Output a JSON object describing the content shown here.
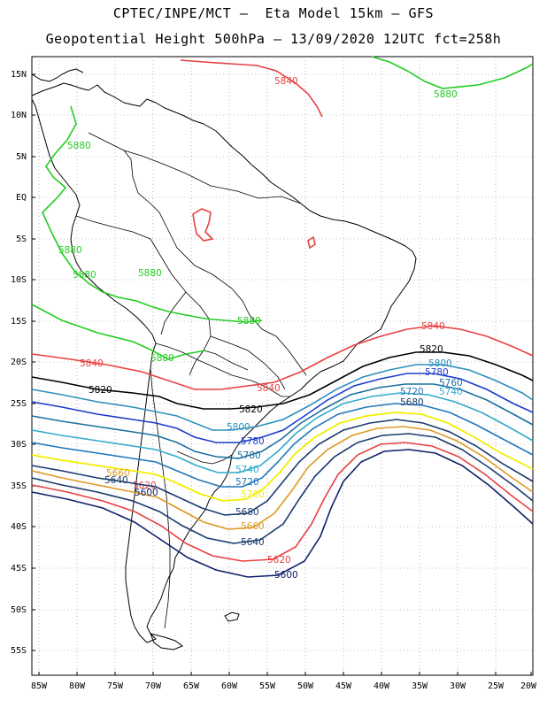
{
  "header": {
    "line1": "CPTEC/INPE/MCT –  Eta Model 15km – GFS",
    "line2": "Geopotential Height 500hPa – 13/09/2020 12UTC fct=258h"
  },
  "axes": {
    "lat_labels": [
      "15N",
      "10N",
      "5N",
      "EQ",
      "5S",
      "10S",
      "15S",
      "20S",
      "25S",
      "30S",
      "35S",
      "40S",
      "45S",
      "50S",
      "55S"
    ],
    "lon_labels": [
      "85W",
      "80W",
      "75W",
      "70W",
      "65W",
      "60W",
      "55W",
      "50W",
      "45W",
      "40W",
      "35W",
      "30W",
      "25W",
      "20W"
    ],
    "lat_range": [
      -57.5,
      16.5
    ],
    "lon_range": [
      -86,
      -20
    ],
    "grid": "dotted"
  },
  "colors": {
    "c5880": "#22cc22",
    "c5840": "#e84040",
    "c5820": "#000000",
    "c5800": "#2c8fbf",
    "c5780": "#1a3ccc",
    "c5760": "#1c6fa0",
    "c5740": "#33aacc",
    "c5720": "#2277bb",
    "c5700": "#f0f000",
    "c5680": "#1a3a6e",
    "c5660": "#dd9922",
    "c5620": "#e84040",
    "c5600": "#10206a"
  },
  "contour_labels": {
    "l5880_a": "5880",
    "l5880_b": "5880",
    "l5880_c": "5880",
    "l5880_d": "5880",
    "l5880_e": "5880",
    "l5880_f": "5880",
    "l5880_g": "5880",
    "l5840_a": "5840",
    "l5840_b": "5840",
    "l5840_c": "5840",
    "l5840_d": "5840",
    "l5840_e": "5840",
    "l5820_a": "5820",
    "l5820_b": "5820",
    "l5820_c": "5820",
    "l5820_d": "5820",
    "l5800_a": "5800",
    "l5800_b": "5800",
    "l5800_c": "5800",
    "l5780_a": "5780",
    "l5780_b": "5780",
    "l5780_c": "5780",
    "l5780_d": "5780",
    "l5760_a": "5760",
    "l5740_a": "5740",
    "l5740_b": "5740",
    "l5720_a": "5720",
    "l5720_b": "5720",
    "l5700_a": "5700",
    "l5680_a": "5680",
    "l5680_b": "5680",
    "l5660_a": "5660",
    "l5660_b": "5660",
    "l5640_a": "5640",
    "l5640_b": "5640",
    "l5620_a": "5620",
    "l5620_b": "5620",
    "l5600_a": "5600",
    "l5600_b": "5600"
  }
}
